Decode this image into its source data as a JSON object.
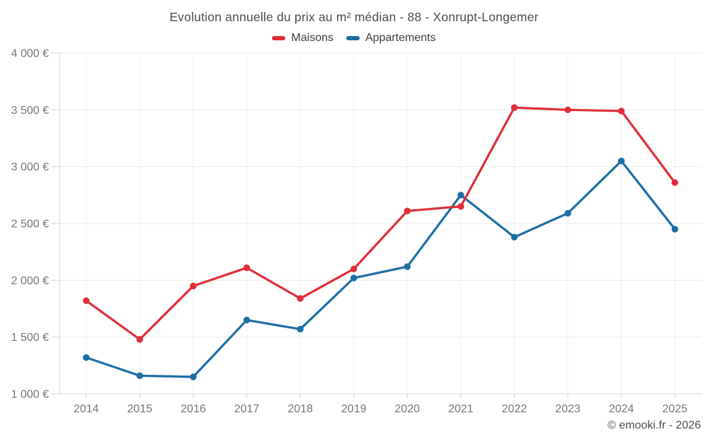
{
  "footer": {
    "credit": "© emooki.fr - 2026"
  },
  "colors": {
    "background": "#ffffff",
    "maisons_red": "#df2e38",
    "appartements_blue": "#1c6ea4",
    "title_text": "#4c4c4c",
    "legend_text": "#3d3d3d",
    "axis_text": "#757575",
    "footer_text": "#4e4e4e",
    "gridline_h": "#eaeaea",
    "gridline_v": "#f1f1f1",
    "axis_line": "#d4d4d4"
  },
  "chart_data": {
    "type": "line",
    "title": "Evolution annuelle du prix au m² médian - 88 - Xonrupt-Longemer",
    "categories": [
      "2014",
      "2015",
      "2016",
      "2017",
      "2018",
      "2019",
      "2020",
      "2021",
      "2022",
      "2023",
      "2024",
      "2025"
    ],
    "series": [
      {
        "name": "Maisons",
        "color": "#df2e38",
        "values": [
          1820,
          1480,
          1950,
          2110,
          1840,
          2100,
          2610,
          2650,
          3520,
          3500,
          3490,
          2860
        ]
      },
      {
        "name": "Appartements",
        "color": "#1c6ea4",
        "values": [
          1320,
          1160,
          1150,
          1650,
          1570,
          2020,
          2120,
          2750,
          2380,
          2590,
          3050,
          2450
        ]
      }
    ],
    "xlabel": "",
    "ylabel": "",
    "ylim": [
      1000,
      4000
    ],
    "y_tick_step": 500,
    "y_tick_labels": [
      "1 000 €",
      "1 500 €",
      "2 000 €",
      "2 500 €",
      "3 000 €",
      "3 500 €",
      "4 000 €"
    ],
    "grid": true,
    "legend_position": "top",
    "marker": "circle"
  }
}
